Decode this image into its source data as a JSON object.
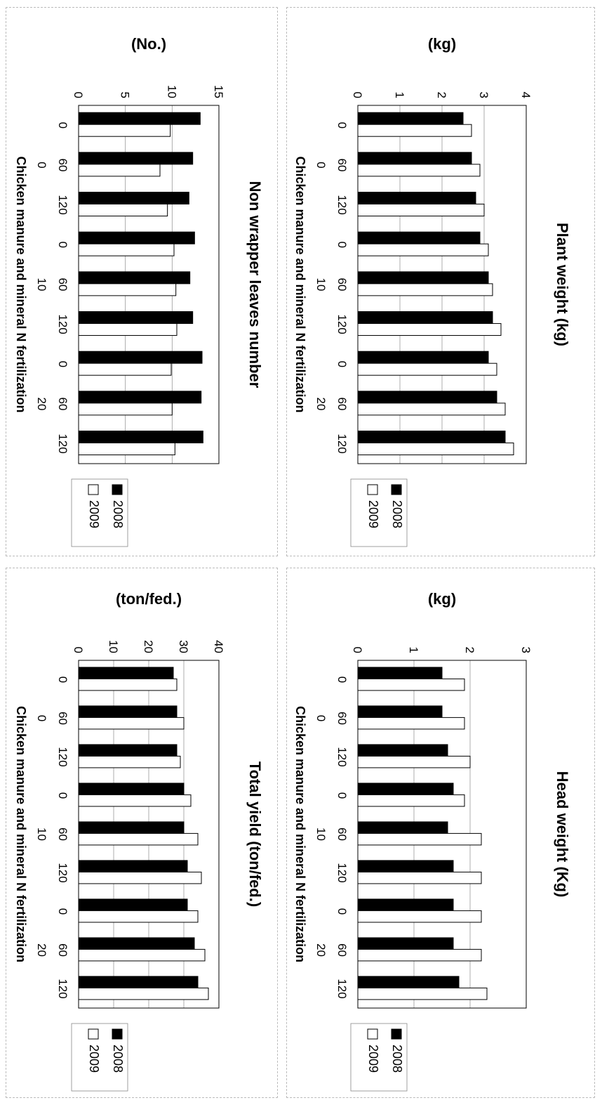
{
  "chart_data": [
    {
      "type": "bar",
      "title": "Plant weight (kg)",
      "unit_label": "(kg)",
      "xlabel": "Chicken manure and mineral N fertilization",
      "ylim": [
        0,
        4
      ],
      "yticks": [
        "0",
        "1",
        "2",
        "3",
        "4"
      ],
      "groups": [
        "0",
        "10",
        "20"
      ],
      "categories": [
        "0",
        "60",
        "120",
        "0",
        "60",
        "120",
        "0",
        "60",
        "120"
      ],
      "series": [
        {
          "name": "2008",
          "values": [
            2.5,
            2.7,
            2.8,
            2.9,
            3.1,
            3.2,
            3.1,
            3.3,
            3.5
          ]
        },
        {
          "name": "2009",
          "values": [
            2.7,
            2.9,
            3.0,
            3.1,
            3.2,
            3.4,
            3.3,
            3.5,
            3.7
          ]
        }
      ],
      "legend_position": "right"
    },
    {
      "type": "bar",
      "title": "Non wrapper leaves number",
      "unit_label": "(No.)",
      "xlabel": "Chicken manure and mineral N fertilization",
      "ylim": [
        0,
        15
      ],
      "yticks": [
        "0",
        "5",
        "10",
        "15"
      ],
      "groups": [
        "0",
        "10",
        "20"
      ],
      "categories": [
        "0",
        "60",
        "120",
        "0",
        "60",
        "120",
        "0",
        "60",
        "120"
      ],
      "series": [
        {
          "name": "2008",
          "values": [
            13.0,
            12.2,
            11.8,
            12.4,
            11.9,
            12.2,
            13.2,
            13.1,
            13.3
          ]
        },
        {
          "name": "2009",
          "values": [
            9.8,
            8.7,
            9.5,
            10.2,
            10.4,
            10.5,
            9.9,
            10.0,
            10.3
          ]
        }
      ],
      "legend_position": "right"
    },
    {
      "type": "bar",
      "title": "Head weight (Kg)",
      "unit_label": "(kg)",
      "xlabel": "Chicken manure and mineral N fertilization",
      "ylim": [
        0,
        3
      ],
      "yticks": [
        "0",
        "1",
        "2",
        "3"
      ],
      "groups": [
        "0",
        "10",
        "20"
      ],
      "categories": [
        "0",
        "60",
        "120",
        "0",
        "60",
        "120",
        "0",
        "60",
        "120"
      ],
      "series": [
        {
          "name": "2008",
          "values": [
            1.5,
            1.5,
            1.6,
            1.7,
            1.6,
            1.7,
            1.7,
            1.7,
            1.8
          ]
        },
        {
          "name": "2009",
          "values": [
            1.9,
            1.9,
            2.0,
            1.9,
            2.2,
            2.2,
            2.2,
            2.2,
            2.3
          ]
        }
      ],
      "legend_position": "right"
    },
    {
      "type": "bar",
      "title": "Total yield (ton/fed.)",
      "unit_label": "(ton/fed.)",
      "xlabel": "Chicken manure and mineral N fertilization",
      "ylim": [
        0,
        40
      ],
      "yticks": [
        "0",
        "10",
        "20",
        "30",
        "40"
      ],
      "groups": [
        "0",
        "10",
        "20"
      ],
      "categories": [
        "0",
        "60",
        "120",
        "0",
        "60",
        "120",
        "0",
        "60",
        "120"
      ],
      "series": [
        {
          "name": "2008",
          "values": [
            27,
            28,
            28,
            30,
            30,
            31,
            31,
            33,
            34
          ]
        },
        {
          "name": "2009",
          "values": [
            28,
            30,
            29,
            32,
            34,
            35,
            34,
            36,
            37
          ]
        }
      ],
      "legend_position": "right"
    }
  ]
}
